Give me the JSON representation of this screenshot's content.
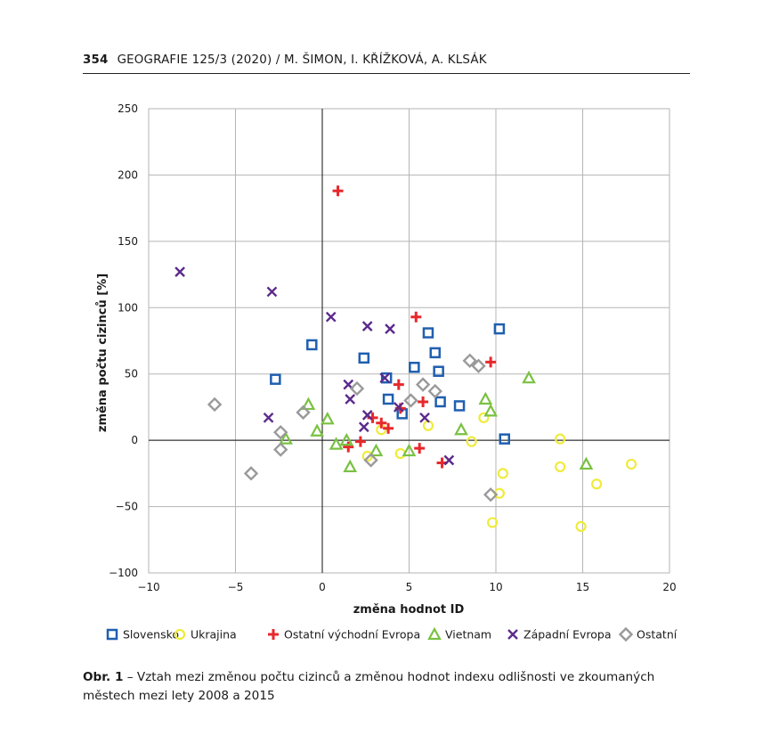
{
  "header": {
    "page_number": "354",
    "running_title": "GEOGRAFIE 125/3 (2020)  /  M. ŠIMON, I. KŘÍŽKOVÁ, A. KLSÁK"
  },
  "caption": {
    "label": "Obr. 1",
    "text": " – Vztah mezi změnou počtu cizinců a změnou hodnot indexu odlišnosti ve zkoumaných městech mezi lety 2008 a 2015"
  },
  "chart_data": {
    "type": "scatter",
    "xlabel": "změna hodnot ID",
    "ylabel": "změna počtu cizinců [%]",
    "xlim": [
      -10,
      20
    ],
    "ylim": [
      -100,
      250
    ],
    "x_ticks": [
      -10,
      -5,
      0,
      5,
      10,
      15,
      20
    ],
    "y_ticks": [
      -100,
      -50,
      0,
      50,
      100,
      150,
      200,
      250
    ],
    "x_tick_labels": [
      "−10",
      "−5",
      "0",
      "5",
      "10",
      "15",
      "20"
    ],
    "y_tick_labels": [
      "−100",
      "−50",
      "0",
      "50",
      "100",
      "150",
      "200",
      "250"
    ],
    "grid": true,
    "legend_position": "bottom",
    "series": [
      {
        "name": "Slovensko",
        "marker": "square",
        "color": "#1f5fb0",
        "points": [
          [
            -2.7,
            46
          ],
          [
            -0.6,
            72
          ],
          [
            2.4,
            62
          ],
          [
            3.7,
            47
          ],
          [
            3.8,
            31
          ],
          [
            4.6,
            20
          ],
          [
            5.3,
            55
          ],
          [
            6.1,
            81
          ],
          [
            6.5,
            66
          ],
          [
            6.7,
            52
          ],
          [
            6.8,
            29
          ],
          [
            7.9,
            26
          ],
          [
            10.2,
            84
          ],
          [
            10.5,
            1
          ]
        ]
      },
      {
        "name": "Ukrajina",
        "marker": "circle",
        "color": "#f0eb3a",
        "points": [
          [
            2.6,
            -12
          ],
          [
            3.4,
            8
          ],
          [
            4.5,
            -10
          ],
          [
            6.1,
            11
          ],
          [
            8.6,
            -1
          ],
          [
            9.3,
            17
          ],
          [
            9.8,
            -62
          ],
          [
            10.2,
            -40
          ],
          [
            10.4,
            -25
          ],
          [
            13.7,
            1
          ],
          [
            13.7,
            -20
          ],
          [
            14.9,
            -65
          ],
          [
            15.8,
            -33
          ],
          [
            17.8,
            -18
          ]
        ]
      },
      {
        "name": "Ostatní východní Evropa",
        "marker": "plus",
        "color": "#e8282c",
        "points": [
          [
            0.9,
            188
          ],
          [
            1.5,
            -5
          ],
          [
            2.2,
            -1
          ],
          [
            2.9,
            17
          ],
          [
            3.4,
            13
          ],
          [
            3.8,
            9
          ],
          [
            4.4,
            42
          ],
          [
            4.5,
            24
          ],
          [
            5.4,
            93
          ],
          [
            5.8,
            29
          ],
          [
            5.6,
            -6
          ],
          [
            6.9,
            -17
          ],
          [
            9.7,
            59
          ]
        ]
      },
      {
        "name": "Vietnam",
        "marker": "triangle",
        "color": "#7ac142",
        "points": [
          [
            -2.1,
            1
          ],
          [
            -0.8,
            27
          ],
          [
            -0.3,
            7
          ],
          [
            0.3,
            16
          ],
          [
            0.8,
            -3
          ],
          [
            1.4,
            0
          ],
          [
            1.6,
            -20
          ],
          [
            3.1,
            -8
          ],
          [
            5.0,
            -8
          ],
          [
            8.0,
            8
          ],
          [
            9.4,
            31
          ],
          [
            9.7,
            22
          ],
          [
            11.9,
            47
          ],
          [
            15.2,
            -18
          ]
        ]
      },
      {
        "name": "Západní Evropa",
        "marker": "x",
        "color": "#5b2a8c",
        "points": [
          [
            -8.2,
            127
          ],
          [
            -3.1,
            17
          ],
          [
            -2.9,
            112
          ],
          [
            0.5,
            93
          ],
          [
            1.5,
            42
          ],
          [
            1.6,
            31
          ],
          [
            2.4,
            10
          ],
          [
            2.6,
            86
          ],
          [
            2.6,
            19
          ],
          [
            3.6,
            47
          ],
          [
            3.9,
            84
          ],
          [
            4.4,
            25
          ],
          [
            5.9,
            17
          ],
          [
            7.3,
            -15
          ]
        ]
      },
      {
        "name": "Ostatní",
        "marker": "diamond",
        "color": "#9a9a9a",
        "points": [
          [
            -6.2,
            27
          ],
          [
            -4.1,
            -25
          ],
          [
            -2.4,
            6
          ],
          [
            -2.4,
            -7
          ],
          [
            -1.1,
            21
          ],
          [
            2.0,
            39
          ],
          [
            2.8,
            -15
          ],
          [
            5.1,
            30
          ],
          [
            5.8,
            42
          ],
          [
            6.5,
            37
          ],
          [
            8.5,
            60
          ],
          [
            9.0,
            56
          ],
          [
            9.7,
            -41
          ]
        ]
      }
    ]
  }
}
